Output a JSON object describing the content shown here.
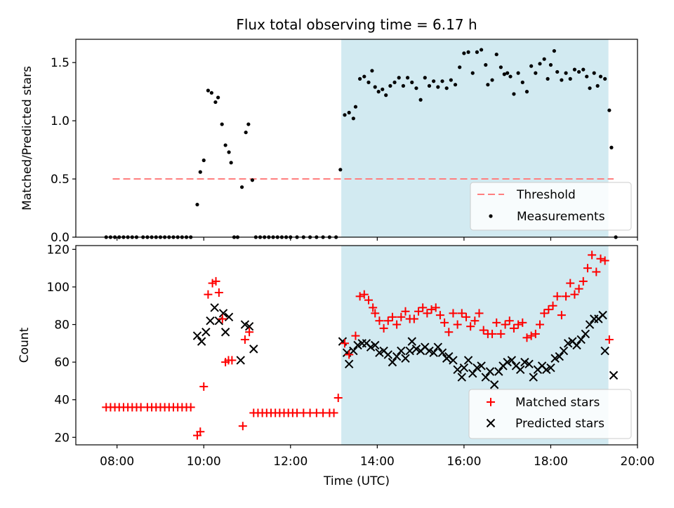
{
  "chart_data": {
    "type": "scatter",
    "title": "Flux total observing time = 6.17 h",
    "xlabel": "Time (UTC)",
    "x_ticks": [
      "08:00",
      "10:00",
      "12:00",
      "14:00",
      "16:00",
      "18:00",
      "20:00"
    ],
    "xlim_hours": [
      7.05,
      20.0
    ],
    "highlight_span_hours": [
      13.17,
      19.33
    ],
    "colors": {
      "highlight": "#add8e6",
      "threshold": "#ff7f7f",
      "measurements": "#000000",
      "matched": "#ff0000",
      "predicted": "#000000"
    },
    "top_panel": {
      "ylabel": "Matched/Predicted stars",
      "ylim": [
        0,
        1.7
      ],
      "y_ticks": [
        "0.0",
        "0.5",
        "1.0",
        "1.5"
      ],
      "threshold": {
        "name": "Threshold",
        "value": 0.5,
        "x_range_hours": [
          7.9,
          19.45
        ]
      },
      "legend": [
        "Threshold",
        "Measurements"
      ],
      "legend_position": "lower right",
      "measurements": [
        [
          7.75,
          0
        ],
        [
          7.85,
          0
        ],
        [
          7.95,
          0
        ],
        [
          8.05,
          0
        ],
        [
          8.15,
          0
        ],
        [
          8.25,
          0
        ],
        [
          8.35,
          0
        ],
        [
          8.45,
          0
        ],
        [
          8.6,
          0
        ],
        [
          8.7,
          0
        ],
        [
          8.8,
          0
        ],
        [
          8.9,
          0
        ],
        [
          9.0,
          0
        ],
        [
          9.1,
          0
        ],
        [
          9.2,
          0
        ],
        [
          9.3,
          0
        ],
        [
          9.4,
          0
        ],
        [
          9.5,
          0
        ],
        [
          9.6,
          0
        ],
        [
          9.7,
          0
        ],
        [
          9.85,
          0.28
        ],
        [
          9.92,
          0.56
        ],
        [
          10.0,
          0.66
        ],
        [
          10.1,
          1.26
        ],
        [
          10.18,
          1.24
        ],
        [
          10.27,
          1.16
        ],
        [
          10.33,
          1.2
        ],
        [
          10.42,
          0.97
        ],
        [
          10.5,
          0.79
        ],
        [
          10.58,
          0.73
        ],
        [
          10.63,
          0.64
        ],
        [
          10.7,
          0
        ],
        [
          10.78,
          0
        ],
        [
          10.88,
          0.43
        ],
        [
          10.97,
          0.9
        ],
        [
          11.03,
          0.97
        ],
        [
          11.12,
          0.49
        ],
        [
          11.2,
          0
        ],
        [
          11.3,
          0
        ],
        [
          11.4,
          0
        ],
        [
          11.5,
          0
        ],
        [
          11.6,
          0
        ],
        [
          11.7,
          0
        ],
        [
          11.8,
          0
        ],
        [
          11.9,
          0
        ],
        [
          12.0,
          0
        ],
        [
          12.15,
          0
        ],
        [
          12.3,
          0
        ],
        [
          12.45,
          0
        ],
        [
          12.6,
          0
        ],
        [
          12.75,
          0
        ],
        [
          12.9,
          0
        ],
        [
          13.05,
          0
        ],
        [
          13.15,
          0.58
        ],
        [
          13.25,
          1.05
        ],
        [
          13.35,
          1.07
        ],
        [
          13.45,
          1.02
        ],
        [
          13.5,
          1.12
        ],
        [
          13.6,
          1.36
        ],
        [
          13.7,
          1.38
        ],
        [
          13.8,
          1.33
        ],
        [
          13.88,
          1.43
        ],
        [
          13.95,
          1.29
        ],
        [
          14.03,
          1.25
        ],
        [
          14.12,
          1.27
        ],
        [
          14.2,
          1.22
        ],
        [
          14.3,
          1.3
        ],
        [
          14.4,
          1.33
        ],
        [
          14.5,
          1.37
        ],
        [
          14.6,
          1.3
        ],
        [
          14.7,
          1.37
        ],
        [
          14.8,
          1.33
        ],
        [
          14.9,
          1.28
        ],
        [
          15.0,
          1.18
        ],
        [
          15.1,
          1.37
        ],
        [
          15.2,
          1.3
        ],
        [
          15.3,
          1.34
        ],
        [
          15.4,
          1.29
        ],
        [
          15.5,
          1.34
        ],
        [
          15.6,
          1.28
        ],
        [
          15.7,
          1.35
        ],
        [
          15.8,
          1.31
        ],
        [
          15.9,
          1.46
        ],
        [
          16.0,
          1.58
        ],
        [
          16.1,
          1.59
        ],
        [
          16.2,
          1.41
        ],
        [
          16.3,
          1.59
        ],
        [
          16.4,
          1.61
        ],
        [
          16.5,
          1.48
        ],
        [
          16.55,
          1.31
        ],
        [
          16.65,
          1.35
        ],
        [
          16.75,
          1.57
        ],
        [
          16.85,
          1.46
        ],
        [
          16.93,
          1.4
        ],
        [
          17.0,
          1.41
        ],
        [
          17.07,
          1.38
        ],
        [
          17.15,
          1.23
        ],
        [
          17.25,
          1.41
        ],
        [
          17.35,
          1.33
        ],
        [
          17.45,
          1.25
        ],
        [
          17.55,
          1.47
        ],
        [
          17.65,
          1.41
        ],
        [
          17.75,
          1.49
        ],
        [
          17.85,
          1.53
        ],
        [
          17.93,
          1.36
        ],
        [
          18.0,
          1.48
        ],
        [
          18.08,
          1.6
        ],
        [
          18.15,
          1.42
        ],
        [
          18.25,
          1.35
        ],
        [
          18.35,
          1.41
        ],
        [
          18.45,
          1.36
        ],
        [
          18.55,
          1.44
        ],
        [
          18.65,
          1.42
        ],
        [
          18.75,
          1.44
        ],
        [
          18.83,
          1.38
        ],
        [
          18.9,
          1.28
        ],
        [
          19.0,
          1.41
        ],
        [
          19.08,
          1.3
        ],
        [
          19.15,
          1.38
        ],
        [
          19.25,
          1.36
        ],
        [
          19.35,
          1.09
        ],
        [
          19.4,
          0.77
        ],
        [
          19.5,
          0
        ]
      ]
    },
    "bottom_panel": {
      "ylabel": "Count",
      "ylim": [
        16,
        122
      ],
      "y_ticks": [
        "20",
        "40",
        "60",
        "80",
        "100",
        "120"
      ],
      "legend": [
        "Matched stars",
        "Predicted stars"
      ],
      "legend_position": "lower right",
      "matched": [
        [
          7.75,
          36
        ],
        [
          7.85,
          36
        ],
        [
          7.95,
          36
        ],
        [
          8.05,
          36
        ],
        [
          8.15,
          36
        ],
        [
          8.25,
          36
        ],
        [
          8.35,
          36
        ],
        [
          8.45,
          36
        ],
        [
          8.55,
          36
        ],
        [
          8.7,
          36
        ],
        [
          8.8,
          36
        ],
        [
          8.9,
          36
        ],
        [
          9.0,
          36
        ],
        [
          9.1,
          36
        ],
        [
          9.2,
          36
        ],
        [
          9.3,
          36
        ],
        [
          9.4,
          36
        ],
        [
          9.5,
          36
        ],
        [
          9.6,
          36
        ],
        [
          9.7,
          36
        ],
        [
          9.85,
          21
        ],
        [
          9.92,
          23
        ],
        [
          10.0,
          47
        ],
        [
          10.1,
          96
        ],
        [
          10.2,
          102
        ],
        [
          10.28,
          103
        ],
        [
          10.35,
          97
        ],
        [
          10.43,
          83
        ],
        [
          10.5,
          60
        ],
        [
          10.57,
          61
        ],
        [
          10.65,
          61
        ],
        [
          10.9,
          26
        ],
        [
          10.95,
          72
        ],
        [
          11.05,
          76
        ],
        [
          11.15,
          33
        ],
        [
          11.25,
          33
        ],
        [
          11.35,
          33
        ],
        [
          11.45,
          33
        ],
        [
          11.55,
          33
        ],
        [
          11.65,
          33
        ],
        [
          11.75,
          33
        ],
        [
          11.85,
          33
        ],
        [
          11.95,
          33
        ],
        [
          12.05,
          33
        ],
        [
          12.15,
          33
        ],
        [
          12.3,
          33
        ],
        [
          12.45,
          33
        ],
        [
          12.6,
          33
        ],
        [
          12.75,
          33
        ],
        [
          12.9,
          33
        ],
        [
          13.0,
          33
        ],
        [
          13.1,
          41
        ],
        [
          13.25,
          70
        ],
        [
          13.35,
          64
        ],
        [
          13.5,
          74
        ],
        [
          13.6,
          95
        ],
        [
          13.7,
          96
        ],
        [
          13.8,
          93
        ],
        [
          13.9,
          89
        ],
        [
          13.95,
          86
        ],
        [
          14.05,
          82
        ],
        [
          14.15,
          78
        ],
        [
          14.25,
          82
        ],
        [
          14.35,
          84
        ],
        [
          14.45,
          80
        ],
        [
          14.55,
          84
        ],
        [
          14.65,
          87
        ],
        [
          14.75,
          83
        ],
        [
          14.85,
          83
        ],
        [
          14.95,
          87
        ],
        [
          15.05,
          89
        ],
        [
          15.15,
          86
        ],
        [
          15.25,
          88
        ],
        [
          15.35,
          89
        ],
        [
          15.45,
          85
        ],
        [
          15.55,
          81
        ],
        [
          15.65,
          76
        ],
        [
          15.75,
          86
        ],
        [
          15.85,
          80
        ],
        [
          15.95,
          86
        ],
        [
          16.05,
          84
        ],
        [
          16.15,
          79
        ],
        [
          16.25,
          82
        ],
        [
          16.35,
          86
        ],
        [
          16.45,
          77
        ],
        [
          16.55,
          75
        ],
        [
          16.65,
          75
        ],
        [
          16.75,
          81
        ],
        [
          16.85,
          75
        ],
        [
          16.95,
          80
        ],
        [
          17.05,
          82
        ],
        [
          17.15,
          78
        ],
        [
          17.25,
          80
        ],
        [
          17.35,
          81
        ],
        [
          17.45,
          73
        ],
        [
          17.55,
          74
        ],
        [
          17.65,
          75
        ],
        [
          17.75,
          80
        ],
        [
          17.85,
          86
        ],
        [
          17.95,
          88
        ],
        [
          18.05,
          90
        ],
        [
          18.15,
          95
        ],
        [
          18.25,
          85
        ],
        [
          18.35,
          95
        ],
        [
          18.45,
          102
        ],
        [
          18.55,
          96
        ],
        [
          18.65,
          99
        ],
        [
          18.75,
          103
        ],
        [
          18.85,
          110
        ],
        [
          18.95,
          117
        ],
        [
          19.05,
          108
        ],
        [
          19.15,
          115
        ],
        [
          19.25,
          114
        ],
        [
          19.35,
          72
        ]
      ],
      "predicted": [
        [
          9.85,
          74
        ],
        [
          9.95,
          71
        ],
        [
          10.05,
          76
        ],
        [
          10.15,
          82
        ],
        [
          10.25,
          89
        ],
        [
          10.35,
          82
        ],
        [
          10.45,
          86
        ],
        [
          10.5,
          76
        ],
        [
          10.58,
          84
        ],
        [
          10.85,
          61
        ],
        [
          10.95,
          80
        ],
        [
          11.05,
          79
        ],
        [
          11.15,
          67
        ],
        [
          13.2,
          71
        ],
        [
          13.3,
          65
        ],
        [
          13.35,
          59
        ],
        [
          13.45,
          66
        ],
        [
          13.55,
          69
        ],
        [
          13.65,
          70
        ],
        [
          13.75,
          70
        ],
        [
          13.85,
          68
        ],
        [
          13.95,
          69
        ],
        [
          14.05,
          65
        ],
        [
          14.15,
          66
        ],
        [
          14.25,
          64
        ],
        [
          14.35,
          60
        ],
        [
          14.45,
          63
        ],
        [
          14.55,
          66
        ],
        [
          14.65,
          62
        ],
        [
          14.75,
          66
        ],
        [
          14.8,
          71
        ],
        [
          14.9,
          67
        ],
        [
          15.0,
          66
        ],
        [
          15.1,
          68
        ],
        [
          15.2,
          66
        ],
        [
          15.3,
          65
        ],
        [
          15.4,
          68
        ],
        [
          15.5,
          65
        ],
        [
          15.6,
          62
        ],
        [
          15.65,
          63
        ],
        [
          15.75,
          61
        ],
        [
          15.85,
          56
        ],
        [
          15.95,
          52
        ],
        [
          16.0,
          57
        ],
        [
          16.1,
          61
        ],
        [
          16.2,
          54
        ],
        [
          16.3,
          57
        ],
        [
          16.4,
          58
        ],
        [
          16.5,
          52
        ],
        [
          16.6,
          55
        ],
        [
          16.7,
          48
        ],
        [
          16.8,
          55
        ],
        [
          16.9,
          58
        ],
        [
          17.0,
          60
        ],
        [
          17.1,
          61
        ],
        [
          17.2,
          58
        ],
        [
          17.3,
          56
        ],
        [
          17.4,
          60
        ],
        [
          17.5,
          59
        ],
        [
          17.6,
          52
        ],
        [
          17.7,
          56
        ],
        [
          17.8,
          58
        ],
        [
          17.9,
          56
        ],
        [
          18.0,
          57
        ],
        [
          18.1,
          62
        ],
        [
          18.2,
          63
        ],
        [
          18.3,
          66
        ],
        [
          18.4,
          70
        ],
        [
          18.5,
          71
        ],
        [
          18.6,
          69
        ],
        [
          18.7,
          72
        ],
        [
          18.8,
          75
        ],
        [
          18.9,
          80
        ],
        [
          19.0,
          83
        ],
        [
          19.1,
          83
        ],
        [
          19.2,
          85
        ],
        [
          19.25,
          66
        ],
        [
          19.45,
          53
        ]
      ]
    }
  }
}
